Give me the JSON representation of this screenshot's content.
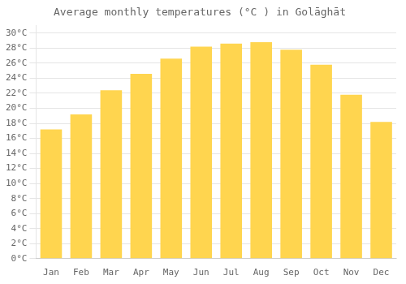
{
  "chart_data": {
    "type": "bar",
    "title": "Average monthly temperatures (°C ) in Golāghāt",
    "categories": [
      "Jan",
      "Feb",
      "Mar",
      "Apr",
      "May",
      "Jun",
      "Jul",
      "Aug",
      "Sep",
      "Oct",
      "Nov",
      "Dec"
    ],
    "values": [
      17.2,
      19.2,
      22.4,
      24.6,
      26.6,
      28.2,
      28.6,
      28.8,
      27.8,
      25.8,
      21.8,
      18.2
    ],
    "color": "#FFD54F",
    "ylim": [
      0,
      31
    ],
    "yticks": [
      {
        "value": 0,
        "label": "0°C"
      },
      {
        "value": 2,
        "label": "2°C"
      },
      {
        "value": 4,
        "label": "4°C"
      },
      {
        "value": 6,
        "label": "6°C"
      },
      {
        "value": 8,
        "label": "8°C"
      },
      {
        "value": 10,
        "label": "10°C"
      },
      {
        "value": 12,
        "label": "12°C"
      },
      {
        "value": 14,
        "label": "14°C"
      },
      {
        "value": 16,
        "label": "16°C"
      },
      {
        "value": 18,
        "label": "18°C"
      },
      {
        "value": 20,
        "label": "20°C"
      },
      {
        "value": 22,
        "label": "22°C"
      },
      {
        "value": 24,
        "label": "24°C"
      },
      {
        "value": 26,
        "label": "26°C"
      },
      {
        "value": 28,
        "label": "28°C"
      },
      {
        "value": 30,
        "label": "30°C"
      }
    ],
    "grid": true
  }
}
